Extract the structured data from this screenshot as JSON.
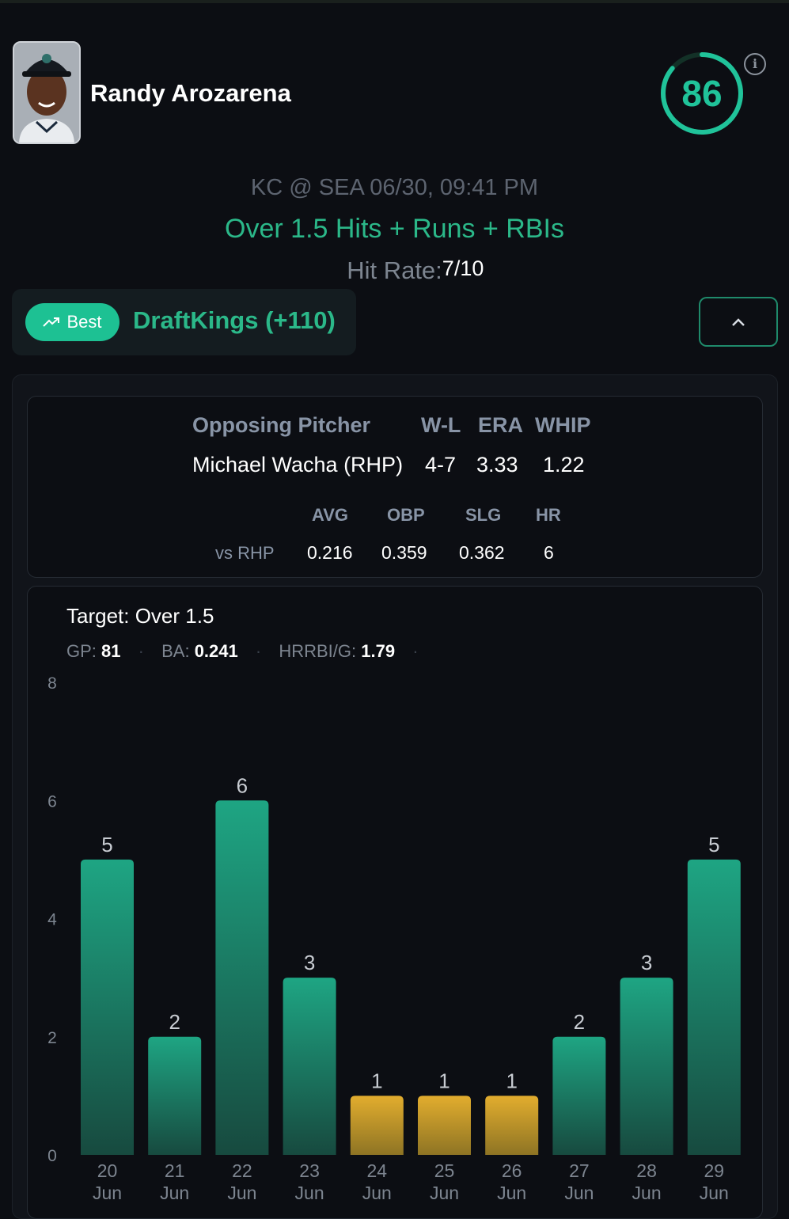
{
  "player": {
    "name": "Randy Arozarena",
    "score": "86"
  },
  "game": {
    "matchup": "KC @ SEA 06/30, 09:41 PM",
    "prop": "Over 1.5 Hits + Runs + RBIs",
    "hit_rate_label": "Hit Rate:",
    "hit_rate_value": "7/10"
  },
  "book": {
    "best_label": "Best",
    "name": "DraftKings (+110)"
  },
  "pitcher": {
    "headers": [
      "Opposing Pitcher",
      "W-L",
      "ERA",
      "WHIP"
    ],
    "name": "Michael Wacha (RHP)",
    "wl": "4-7",
    "era": "3.33",
    "whip": "1.22",
    "split_headers": [
      "AVG",
      "OBP",
      "SLG",
      "HR"
    ],
    "split_label": "vs RHP",
    "split_values": [
      "0.216",
      "0.359",
      "0.362",
      "6"
    ]
  },
  "summary": {
    "target": "Target: Over 1.5",
    "gp_label": "GP:",
    "gp": "81",
    "ba_label": "BA:",
    "ba": "0.241",
    "hrrbi_label": "HRRBI/G:",
    "hrrbi": "1.79"
  },
  "colors": {
    "hit": "#1e9f7c",
    "miss": "#d9a52b",
    "accent": "#20c39a"
  },
  "chart_data": {
    "type": "bar",
    "categories": [
      [
        "20",
        "Jun"
      ],
      [
        "21",
        "Jun"
      ],
      [
        "22",
        "Jun"
      ],
      [
        "23",
        "Jun"
      ],
      [
        "24",
        "Jun"
      ],
      [
        "25",
        "Jun"
      ],
      [
        "26",
        "Jun"
      ],
      [
        "27",
        "Jun"
      ],
      [
        "28",
        "Jun"
      ],
      [
        "29",
        "Jun"
      ]
    ],
    "values": [
      5,
      2,
      6,
      3,
      1,
      1,
      1,
      2,
      3,
      5
    ],
    "threshold": 1.5,
    "ylim": [
      0,
      8
    ],
    "yticks": [
      0,
      2,
      4,
      6,
      8
    ],
    "grid": false
  }
}
